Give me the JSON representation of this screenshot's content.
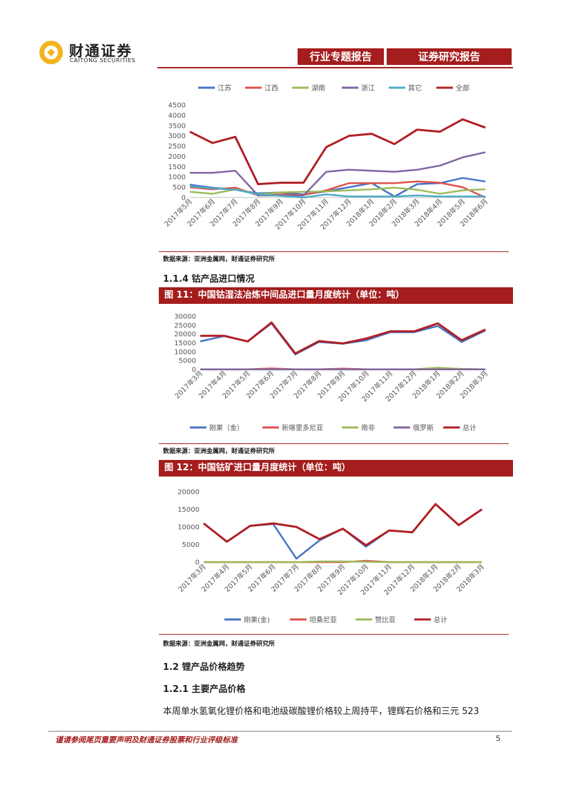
{
  "header": {
    "logo_cn": "财通证券",
    "logo_en": "CAITONG SECURITIES",
    "tag1": "行业专题报告",
    "tag2": "证券研究报告"
  },
  "colors": {
    "brand_red": "#a51d1d",
    "blue": "#4472c4",
    "red": "#e0504a",
    "green": "#9bbb59",
    "purple": "#8064a2",
    "cyan": "#4bacc6",
    "darkred": "#b01f24"
  },
  "chart_data": [
    {
      "type": "line",
      "title": "",
      "categories": [
        "2017年5月",
        "2017年6月",
        "2017年7月",
        "2017年8月",
        "2017年9月",
        "2017年10月",
        "2017年11月",
        "2017年12月",
        "2018年1月",
        "2018年2月",
        "2018年3月",
        "2018年4月",
        "2018年5月",
        "2018年6月"
      ],
      "ylim": [
        0,
        4500
      ],
      "yticks": [
        "4500",
        "4000",
        "3500",
        "3000",
        "2500",
        "2000",
        "1500",
        "1000",
        "500",
        "0"
      ],
      "legend_position": "top",
      "series": [
        {
          "name": "江苏",
          "color": "#4472c4",
          "values": [
            620,
            480,
            380,
            200,
            250,
            150,
            300,
            500,
            700,
            50,
            650,
            700,
            950,
            780
          ]
        },
        {
          "name": "江西",
          "color": "#e0504a",
          "values": [
            500,
            400,
            480,
            100,
            150,
            120,
            350,
            700,
            700,
            700,
            780,
            720,
            500,
            0
          ]
        },
        {
          "name": "湖南",
          "color": "#9bbb59",
          "values": [
            280,
            180,
            400,
            150,
            250,
            280,
            300,
            350,
            400,
            480,
            380,
            180,
            350,
            400
          ]
        },
        {
          "name": "浙江",
          "color": "#8064a2",
          "values": [
            1200,
            1200,
            1300,
            100,
            100,
            100,
            1250,
            1350,
            1300,
            1250,
            1350,
            1550,
            1950,
            2200
          ]
        },
        {
          "name": "其它",
          "color": "#4bacc6",
          "values": [
            550,
            450,
            380,
            150,
            80,
            0,
            150,
            50,
            50,
            50,
            100,
            50,
            50,
            50
          ]
        },
        {
          "name": "全部",
          "color": "#b01f24",
          "values": [
            3200,
            2650,
            2950,
            650,
            720,
            720,
            2450,
            3000,
            3100,
            2600,
            3300,
            3200,
            3800,
            3400
          ]
        }
      ]
    },
    {
      "type": "line",
      "title": "图 11：中国钴湿法冶炼中间品进口量月度统计（单位：吨）",
      "categories": [
        "2017年3月",
        "2017年4月",
        "2017年5月",
        "2017年6月",
        "2017年7月",
        "2017年8月",
        "2017年9月",
        "2017年10月",
        "2017年11月",
        "2017年12月",
        "2018年1月",
        "2018年2月",
        "2018年3月"
      ],
      "ylim": [
        0,
        30000
      ],
      "yticks": [
        "30000",
        "25000",
        "20000",
        "15000",
        "10000",
        "5000",
        "0"
      ],
      "legend_position": "bottom",
      "series": [
        {
          "name": "刚果（金）",
          "color": "#4472c4",
          "values": [
            15800,
            18800,
            15800,
            26000,
            8500,
            15500,
            14500,
            16500,
            21000,
            21000,
            24500,
            15500,
            22000
          ]
        },
        {
          "name": "新喀里多尼亚",
          "color": "#e0504a",
          "values": [
            100,
            100,
            100,
            600,
            100,
            100,
            500,
            100,
            100,
            100,
            200,
            200,
            100
          ]
        },
        {
          "name": "南非",
          "color": "#9bbb59",
          "values": [
            50,
            50,
            50,
            100,
            50,
            50,
            50,
            50,
            100,
            50,
            1000,
            300,
            50
          ]
        },
        {
          "name": "俄罗斯",
          "color": "#8064a2",
          "values": [
            50,
            50,
            50,
            50,
            50,
            50,
            50,
            50,
            50,
            50,
            50,
            50,
            50
          ]
        },
        {
          "name": "总计",
          "color": "#b01f24",
          "values": [
            19000,
            19000,
            15800,
            26500,
            9000,
            16000,
            14700,
            17500,
            21500,
            21500,
            26000,
            16500,
            22500
          ]
        }
      ]
    },
    {
      "type": "line",
      "title": "图 12：中国钴矿进口量月度统计（单位：吨）",
      "categories": [
        "2017年3月",
        "2017年4月",
        "2017年5月",
        "2017年6月",
        "2017年7月",
        "2017年8月",
        "2017年9月",
        "2017年10月",
        "2017年11月",
        "2017年12月",
        "2018年1月",
        "2018年2月",
        "2018年3月"
      ],
      "ylim": [
        0,
        20000
      ],
      "yticks": [
        "20000",
        "15000",
        "10000",
        "5000",
        "0"
      ],
      "legend_position": "bottom",
      "series": [
        {
          "name": "刚果(金)",
          "color": "#4472c4",
          "values": [
            11000,
            5800,
            10300,
            10800,
            1000,
            6200,
            9500,
            4400,
            9000,
            8500,
            16500,
            10500,
            15000
          ]
        },
        {
          "name": "坦桑尼亚",
          "color": "#e0504a",
          "values": [
            0,
            0,
            0,
            0,
            0,
            0,
            0,
            400,
            0,
            0,
            0,
            0,
            0
          ]
        },
        {
          "name": "赞比亚",
          "color": "#9bbb59",
          "values": [
            0,
            0,
            0,
            0,
            0,
            200,
            200,
            100,
            0,
            0,
            0,
            0,
            0
          ]
        },
        {
          "name": "总计",
          "color": "#b01f24",
          "values": [
            11000,
            5800,
            10300,
            11000,
            10000,
            6500,
            9500,
            4800,
            9000,
            8500,
            16500,
            10500,
            15000
          ]
        }
      ]
    }
  ],
  "source_note": "数据来源：亚洲金属网，财通证券研究所",
  "section_114": "1.1.4  钴产品进口情况",
  "section_12": "1.2  锂产品价格趋势",
  "section_121": "1.2.1  主要产品价格",
  "body_text": "本周单水氢氧化锂价格和电池级碳酸锂价格较上周持平，锂辉石价格和三元 523",
  "footer_text": "谨请参阅尾页重要声明及财通证券股票和行业评级标准",
  "page_number": "5"
}
